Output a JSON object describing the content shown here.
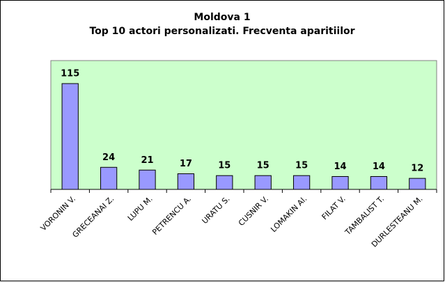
{
  "chart_data": {
    "type": "bar",
    "title": "Moldova 1",
    "subtitle": "Top 10 actori personalizati. Frecventa aparitiilor",
    "categories": [
      "VORONIN V.",
      "GRECEANAI Z.",
      "LUPU M.",
      "PETRENCU A.",
      "URATU S.",
      "CUSNIR V.",
      "LOMAKIN Al.",
      "FILAT V.",
      "TAMBALIST T.",
      "DURLESTEANU M."
    ],
    "values": [
      115,
      24,
      21,
      17,
      15,
      15,
      15,
      14,
      14,
      12
    ],
    "color": "#9999ff",
    "ylim": [
      0,
      140
    ]
  }
}
